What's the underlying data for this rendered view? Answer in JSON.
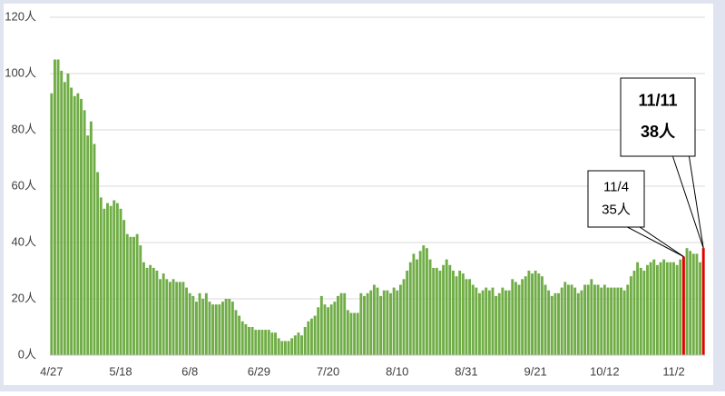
{
  "chart_data": {
    "type": "bar",
    "categories": [
      "4/27",
      null,
      null,
      null,
      null,
      null,
      null,
      null,
      null,
      null,
      null,
      null,
      null,
      null,
      null,
      null,
      null,
      null,
      null,
      null,
      null,
      "5/18",
      null,
      null,
      null,
      null,
      null,
      null,
      null,
      null,
      null,
      null,
      null,
      null,
      null,
      null,
      null,
      null,
      null,
      null,
      null,
      null,
      "6/8",
      null,
      null,
      null,
      null,
      null,
      null,
      null,
      null,
      null,
      null,
      null,
      null,
      null,
      null,
      null,
      null,
      null,
      null,
      null,
      null,
      "6/29",
      null,
      null,
      null,
      null,
      null,
      null,
      null,
      null,
      null,
      null,
      null,
      null,
      null,
      null,
      null,
      null,
      null,
      null,
      null,
      null,
      "7/20",
      null,
      null,
      null,
      null,
      null,
      null,
      null,
      null,
      null,
      null,
      null,
      null,
      null,
      null,
      null,
      null,
      null,
      null,
      null,
      null,
      "8/10",
      null,
      null,
      null,
      null,
      null,
      null,
      null,
      null,
      null,
      null,
      null,
      null,
      null,
      null,
      null,
      null,
      null,
      null,
      null,
      null,
      "8/31",
      null,
      null,
      null,
      null,
      null,
      null,
      null,
      null,
      null,
      null,
      null,
      null,
      null,
      null,
      null,
      null,
      null,
      null,
      null,
      null,
      "9/21",
      null,
      null,
      null,
      null,
      null,
      null,
      null,
      null,
      null,
      null,
      null,
      null,
      null,
      null,
      null,
      null,
      null,
      null,
      null,
      null,
      "10/12",
      null,
      null,
      null,
      null,
      null,
      null,
      null,
      null,
      null,
      null,
      null,
      null,
      null,
      null,
      null,
      null,
      null,
      null,
      null,
      null,
      "11/2",
      null,
      null,
      null,
      null,
      null,
      null,
      null,
      null,
      null
    ],
    "values": [
      93,
      105,
      105,
      101,
      97,
      100,
      95,
      92,
      93,
      91,
      87,
      78,
      83,
      75,
      65,
      56,
      52,
      54,
      53,
      55,
      54,
      52,
      48,
      43,
      42,
      42,
      43,
      39,
      33,
      31,
      32,
      31,
      30,
      27,
      29,
      27,
      26,
      27,
      26,
      26,
      26,
      24,
      22,
      21,
      19,
      22,
      20,
      22,
      19,
      18,
      18,
      18,
      19,
      20,
      20,
      19,
      16,
      14,
      12,
      11,
      10,
      10,
      9,
      9,
      9,
      9,
      9,
      8,
      8,
      6,
      5,
      5,
      5,
      6,
      7,
      8,
      7,
      10,
      12,
      13,
      14,
      17,
      21,
      18,
      17,
      18,
      19,
      21,
      22,
      22,
      16,
      15,
      15,
      15,
      22,
      21,
      22,
      23,
      25,
      24,
      21,
      23,
      23,
      22,
      24,
      23,
      25,
      27,
      30,
      33,
      36,
      34,
      37,
      39,
      38,
      34,
      31,
      31,
      30,
      32,
      34,
      32,
      30,
      28,
      30,
      29,
      27,
      27,
      25,
      24,
      22,
      23,
      24,
      23,
      24,
      21,
      22,
      24,
      23,
      23,
      27,
      26,
      25,
      27,
      28,
      30,
      29,
      30,
      29,
      28,
      25,
      23,
      21,
      22,
      22,
      24,
      26,
      25,
      25,
      24,
      22,
      23,
      25,
      25,
      27,
      25,
      25,
      24,
      25,
      24,
      24,
      24,
      24,
      24,
      23,
      25,
      28,
      30,
      33,
      31,
      30,
      32,
      33,
      34,
      32,
      33,
      34,
      33,
      33,
      33,
      32,
      34,
      35,
      38,
      37,
      36,
      36,
      33,
      38
    ],
    "color": "#70ad47",
    "highlight_color": "#e00000",
    "ylim": [
      0,
      120
    ],
    "yticks": [
      {
        "value": 0,
        "label": "0人"
      },
      {
        "value": 20,
        "label": "20人"
      },
      {
        "value": 40,
        "label": "40人"
      },
      {
        "value": 60,
        "label": "60人"
      },
      {
        "value": 80,
        "label": "80人"
      },
      {
        "value": 100,
        "label": "100人"
      },
      {
        "value": 120,
        "label": "120人"
      }
    ],
    "grid": true,
    "annotations": [
      {
        "at": 192,
        "lines": [
          "11/4",
          "35人"
        ],
        "bold": false
      },
      {
        "at": 198,
        "lines": [
          "11/11",
          "38人"
        ],
        "bold": true
      }
    ]
  }
}
